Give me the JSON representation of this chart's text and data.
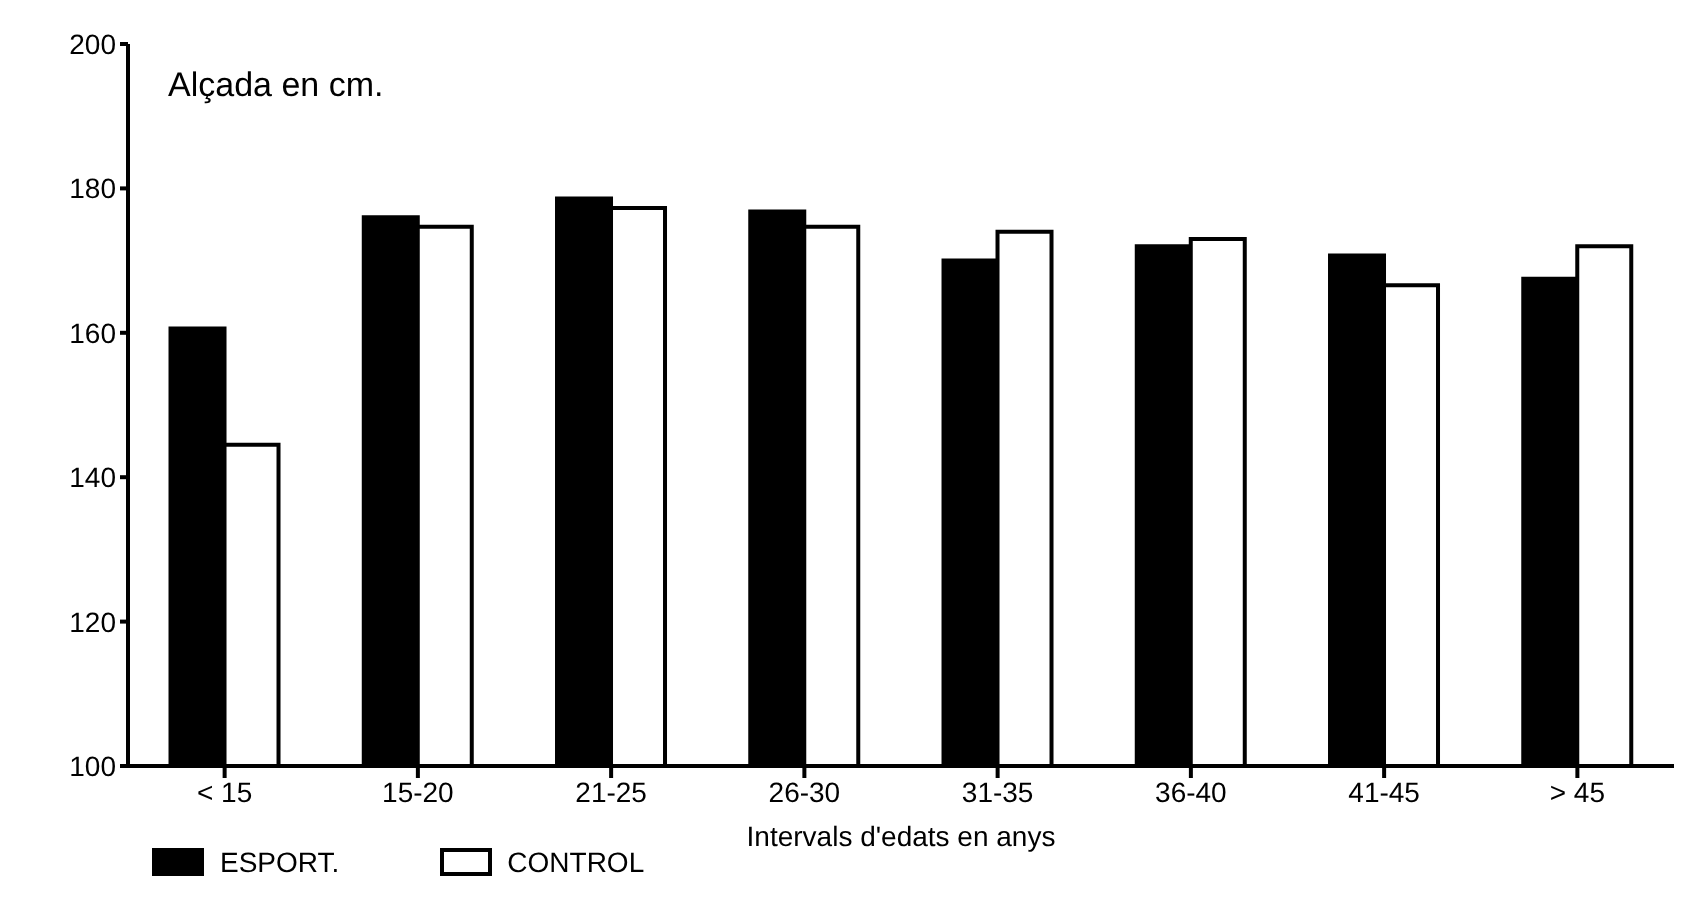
{
  "chart_data": {
    "type": "bar",
    "ylabel": "Alçada en cm.",
    "xlabel": "Intervals d'edats en anys",
    "categories": [
      "< 15",
      "15-20",
      "21-25",
      "26-30",
      "31-35",
      "36-40",
      "41-45",
      "> 45"
    ],
    "series": [
      {
        "name": "ESPORT.",
        "color": "#000000",
        "values": [
          160.6,
          176,
          178.6,
          176.8,
          170,
          172,
          170.7,
          167.5
        ]
      },
      {
        "name": "CONTROL",
        "color": "#ffffff",
        "values": [
          144.5,
          174.7,
          177.3,
          174.7,
          174,
          173,
          166.6,
          172
        ]
      }
    ],
    "ylim": [
      100,
      200
    ],
    "yticks": [
      100,
      120,
      140,
      160,
      180,
      200
    ],
    "grid": false,
    "legend": "bottom left"
  }
}
